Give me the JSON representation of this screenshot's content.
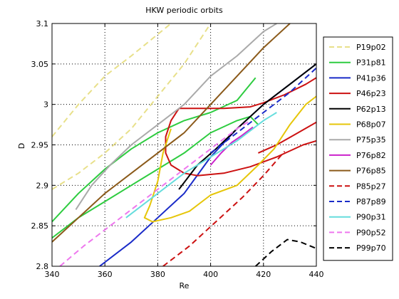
{
  "chart_data": {
    "type": "line",
    "title": "HKW periodic orbits",
    "xlabel": "Re",
    "ylabel": "D",
    "xlim": [
      340,
      440
    ],
    "ylim": [
      2.8,
      3.1
    ],
    "x_ticks": [
      340,
      360,
      380,
      400,
      420,
      440
    ],
    "y_ticks": [
      2.8,
      2.85,
      2.9,
      2.95,
      3.0,
      3.05,
      3.1
    ],
    "x_tick_labels": [
      "340",
      "360",
      "380",
      "400",
      "420",
      "440"
    ],
    "y_tick_labels": [
      "2.8",
      "2.85",
      "2.9",
      "2.95",
      "3",
      "3.05",
      "3.1"
    ],
    "grid": true,
    "legend_position": "outside-right",
    "series": [
      {
        "name": "P19p02",
        "color": "#e8e08a",
        "dash": "dashed",
        "points": [
          [
            340,
            2.96
          ],
          [
            350,
            3.0
          ],
          [
            360,
            3.035
          ],
          [
            370,
            3.06
          ],
          [
            385,
            3.1
          ]
        ]
      },
      {
        "name": "P19p02",
        "color": "#e8e08a",
        "dash": "dashed",
        "points": [
          [
            340,
            2.895
          ],
          [
            350,
            2.915
          ],
          [
            360,
            2.94
          ],
          [
            370,
            2.97
          ],
          [
            380,
            3.01
          ],
          [
            390,
            3.05
          ],
          [
            400,
            3.1
          ]
        ]
      },
      {
        "name": "P31p81",
        "color": "#2ecc40",
        "dash": "solid",
        "points": [
          [
            340,
            2.855
          ],
          [
            350,
            2.89
          ],
          [
            360,
            2.92
          ],
          [
            370,
            2.945
          ],
          [
            380,
            2.965
          ],
          [
            390,
            2.98
          ],
          [
            400,
            2.99
          ],
          [
            410,
            3.005
          ],
          [
            417,
            3.033
          ]
        ]
      },
      {
        "name": "P31p81",
        "color": "#2ecc40",
        "dash": "solid",
        "points": [
          [
            340,
            2.835
          ],
          [
            350,
            2.86
          ],
          [
            360,
            2.88
          ],
          [
            370,
            2.9
          ],
          [
            380,
            2.92
          ],
          [
            390,
            2.94
          ],
          [
            400,
            2.965
          ],
          [
            410,
            2.98
          ],
          [
            415,
            2.985
          ],
          [
            418,
            2.975
          ]
        ]
      },
      {
        "name": "P41p36",
        "color": "#1a2bc8",
        "dash": "solid",
        "points": [
          [
            358,
            2.8
          ],
          [
            370,
            2.83
          ],
          [
            380,
            2.86
          ],
          [
            390,
            2.89
          ],
          [
            400,
            2.935
          ],
          [
            410,
            2.97
          ],
          [
            420,
            3.0
          ],
          [
            430,
            3.025
          ],
          [
            440,
            3.05
          ]
        ]
      },
      {
        "name": "P46p23",
        "color": "#cc1111",
        "dash": "solid",
        "points": [
          [
            388,
            2.995
          ],
          [
            395,
            2.995
          ],
          [
            405,
            2.995
          ],
          [
            415,
            2.997
          ],
          [
            420,
            3.002
          ],
          [
            428,
            3.012
          ],
          [
            436,
            3.025
          ],
          [
            440,
            3.033
          ]
        ]
      },
      {
        "name": "P46p23",
        "color": "#cc1111",
        "dash": "solid",
        "points": [
          [
            388,
            2.995
          ],
          [
            385,
            2.98
          ],
          [
            383,
            2.96
          ],
          [
            383,
            2.94
          ],
          [
            385,
            2.925
          ],
          [
            390,
            2.915
          ],
          [
            395,
            2.912
          ],
          [
            405,
            2.915
          ],
          [
            415,
            2.923
          ],
          [
            425,
            2.935
          ],
          [
            435,
            2.95
          ],
          [
            440,
            2.955
          ]
        ]
      },
      {
        "name": "P46p23",
        "color": "#cc1111",
        "dash": "solid",
        "points": [
          [
            418,
            2.94
          ],
          [
            425,
            2.95
          ],
          [
            432,
            2.963
          ],
          [
            440,
            2.978
          ]
        ]
      },
      {
        "name": "P62p13",
        "color": "#000000",
        "dash": "solid",
        "points": [
          [
            388,
            2.895
          ],
          [
            395,
            2.925
          ],
          [
            402,
            2.945
          ],
          [
            410,
            2.97
          ],
          [
            420,
            3.0
          ],
          [
            430,
            3.025
          ],
          [
            440,
            3.05
          ]
        ]
      },
      {
        "name": "P68p07",
        "color": "#e6c60a",
        "dash": "solid",
        "points": [
          [
            385,
            2.97
          ],
          [
            382,
            2.94
          ],
          [
            380,
            2.905
          ],
          [
            377,
            2.875
          ],
          [
            375,
            2.86
          ],
          [
            378,
            2.855
          ],
          [
            385,
            2.86
          ],
          [
            392,
            2.868
          ],
          [
            400,
            2.888
          ],
          [
            410,
            2.9
          ],
          [
            418,
            2.925
          ],
          [
            424,
            2.945
          ],
          [
            430,
            2.975
          ],
          [
            436,
            3.0
          ],
          [
            440,
            3.01
          ]
        ]
      },
      {
        "name": "P75p35",
        "color": "#aaaaaa",
        "dash": "solid",
        "points": [
          [
            349,
            2.87
          ],
          [
            355,
            2.9
          ],
          [
            362,
            2.925
          ],
          [
            370,
            2.95
          ],
          [
            380,
            2.975
          ],
          [
            390,
            3.0
          ],
          [
            400,
            3.035
          ],
          [
            410,
            3.06
          ],
          [
            420,
            3.09
          ],
          [
            425,
            3.1
          ]
        ]
      },
      {
        "name": "P76p82",
        "color": "#cc22cc",
        "dash": "solid",
        "points": [
          [
            400,
            2.925
          ],
          [
            404,
            2.94
          ],
          [
            408,
            2.953
          ],
          [
            412,
            2.962
          ],
          [
            416,
            2.972
          ]
        ]
      },
      {
        "name": "P76p85",
        "color": "#8b5a1a",
        "dash": "solid",
        "points": [
          [
            340,
            2.83
          ],
          [
            350,
            2.86
          ],
          [
            360,
            2.89
          ],
          [
            370,
            2.915
          ],
          [
            380,
            2.94
          ],
          [
            390,
            2.965
          ],
          [
            400,
            3.0
          ],
          [
            410,
            3.035
          ],
          [
            420,
            3.07
          ],
          [
            430,
            3.1
          ]
        ]
      },
      {
        "name": "P85p27",
        "color": "#cc1111",
        "dash": "dashed",
        "points": [
          [
            382,
            2.8
          ],
          [
            392,
            2.825
          ],
          [
            402,
            2.855
          ],
          [
            412,
            2.885
          ],
          [
            420,
            2.912
          ],
          [
            428,
            2.942
          ]
        ]
      },
      {
        "name": "P87p89",
        "color": "#1a2bc8",
        "dash": "dashed",
        "points": [
          [
            400,
            2.94
          ],
          [
            410,
            2.965
          ],
          [
            420,
            2.99
          ],
          [
            430,
            3.015
          ],
          [
            440,
            3.045
          ]
        ]
      },
      {
        "name": "P90p31",
        "color": "#66dddd",
        "dash": "solid",
        "points": [
          [
            368,
            2.86
          ],
          [
            380,
            2.89
          ],
          [
            390,
            2.915
          ],
          [
            400,
            2.935
          ],
          [
            410,
            2.955
          ],
          [
            420,
            2.98
          ],
          [
            425,
            2.99
          ]
        ]
      },
      {
        "name": "P90p52",
        "color": "#ee77ee",
        "dash": "dashed",
        "points": [
          [
            343,
            2.8
          ],
          [
            352,
            2.825
          ],
          [
            362,
            2.85
          ],
          [
            372,
            2.875
          ],
          [
            382,
            2.9
          ],
          [
            392,
            2.925
          ],
          [
            402,
            2.95
          ],
          [
            410,
            2.97
          ],
          [
            415,
            2.98
          ]
        ]
      },
      {
        "name": "P99p70",
        "color": "#000000",
        "dash": "dashed",
        "points": [
          [
            417,
            2.8
          ],
          [
            423,
            2.818
          ],
          [
            429,
            2.833
          ],
          [
            434,
            2.83
          ],
          [
            440,
            2.822
          ]
        ]
      }
    ],
    "legend": [
      {
        "label": "P19p02",
        "color": "#e8e08a",
        "dash": "dashed"
      },
      {
        "label": "P31p81",
        "color": "#2ecc40",
        "dash": "solid"
      },
      {
        "label": "P41p36",
        "color": "#1a2bc8",
        "dash": "solid"
      },
      {
        "label": "P46p23",
        "color": "#cc1111",
        "dash": "solid"
      },
      {
        "label": "P62p13",
        "color": "#000000",
        "dash": "solid"
      },
      {
        "label": "P68p07",
        "color": "#e6c60a",
        "dash": "solid"
      },
      {
        "label": "P75p35",
        "color": "#aaaaaa",
        "dash": "solid"
      },
      {
        "label": "P76p82",
        "color": "#cc22cc",
        "dash": "solid"
      },
      {
        "label": "P76p85",
        "color": "#8b5a1a",
        "dash": "solid"
      },
      {
        "label": "P85p27",
        "color": "#cc1111",
        "dash": "dashed"
      },
      {
        "label": "P87p89",
        "color": "#1a2bc8",
        "dash": "dashed"
      },
      {
        "label": "P90p31",
        "color": "#66dddd",
        "dash": "solid"
      },
      {
        "label": "P90p52",
        "color": "#ee77ee",
        "dash": "dashed"
      },
      {
        "label": "P99p70",
        "color": "#000000",
        "dash": "dashed"
      }
    ]
  }
}
